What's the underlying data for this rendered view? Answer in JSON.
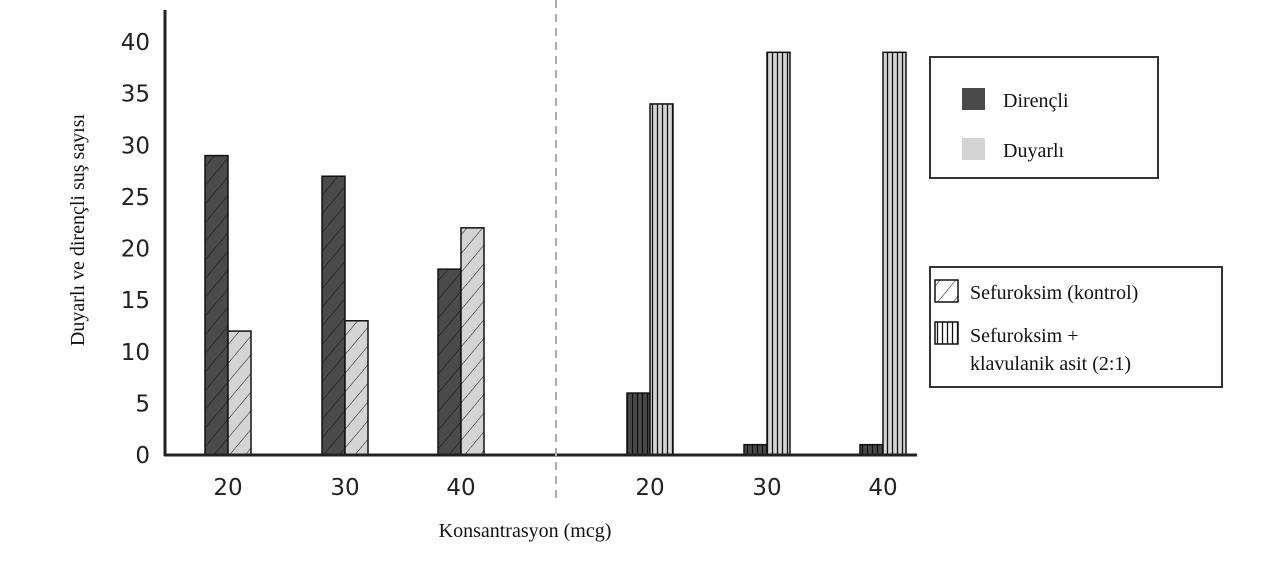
{
  "chart_data": {
    "type": "bar",
    "title": "",
    "xlabel": "Konsantrasyon (mcg)",
    "ylabel": "Duyarlı ve dirençli suş sayısı",
    "ylim": [
      0,
      40
    ],
    "yticks": [
      "0",
      "5",
      "10",
      "15",
      "20",
      "25",
      "30",
      "35",
      "40"
    ],
    "groups": [
      {
        "name": "Sefuroksim (kontrol)",
        "pattern": "diagonal",
        "categories": [
          "20",
          "30",
          "40"
        ],
        "series": [
          {
            "name": "Dirençli",
            "values": [
              29,
              27,
              18
            ]
          },
          {
            "name": "Duyarlı",
            "values": [
              12,
              13,
              22
            ]
          }
        ]
      },
      {
        "name": "Sefuroksim + klavulanik asit (2:1)",
        "pattern": "vertical",
        "categories": [
          "20",
          "30",
          "40"
        ],
        "series": [
          {
            "name": "Dirençli",
            "values": [
              6,
              1,
              1
            ]
          },
          {
            "name": "Duyarlı",
            "values": [
              34,
              39,
              39
            ]
          }
        ]
      }
    ],
    "colors": {
      "Dirençli": "#4a4a4a",
      "Duyarlı": "#d4d4d4"
    },
    "legend_color": [
      "Dirençli",
      "Duyarlı"
    ],
    "legend_pattern": [
      "Sefuroksim (kontrol)",
      "Sefuroksim +",
      "klavulanik asit (2:1)"
    ],
    "legend_placement": "right",
    "grid": false
  }
}
